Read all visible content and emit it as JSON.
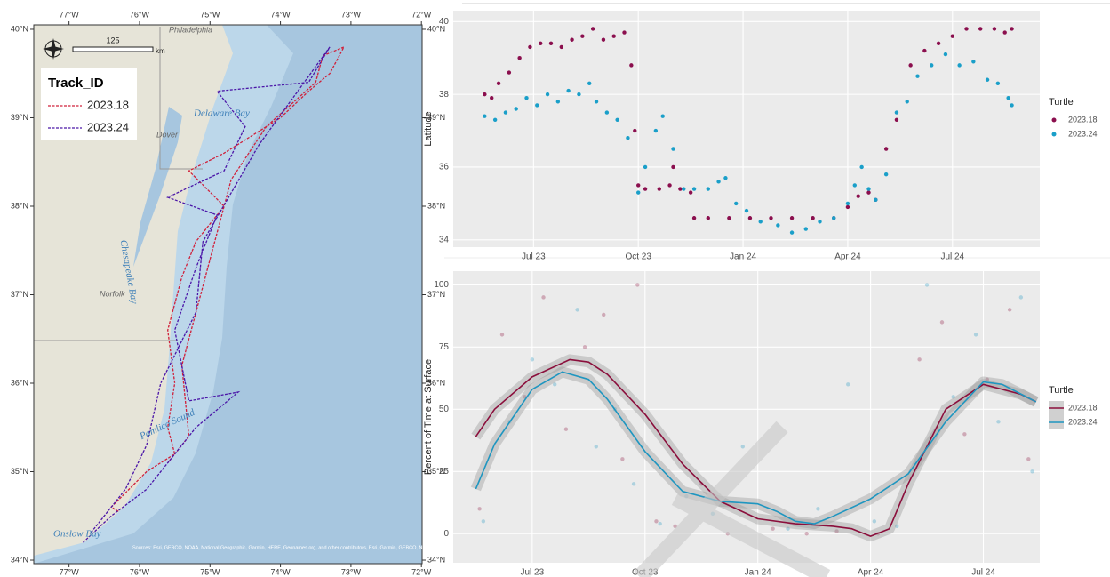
{
  "chart_data": [
    {
      "type": "map",
      "xlim": [
        -77.5,
        -71.99
      ],
      "ylim": [
        33.96,
        40.05
      ],
      "xticks": [
        {
          "value": -77,
          "label": "77°W"
        },
        {
          "value": -76,
          "label": "76°W"
        },
        {
          "value": -75,
          "label": "75°W"
        },
        {
          "value": -74,
          "label": "74°W"
        },
        {
          "value": -73,
          "label": "73°W"
        },
        {
          "value": -72,
          "label": "72°W"
        }
      ],
      "yticks": [
        {
          "value": 34,
          "label": "34°N"
        },
        {
          "value": 35,
          "label": "35°N"
        },
        {
          "value": 36,
          "label": "36°N"
        },
        {
          "value": 37,
          "label": "37°N"
        },
        {
          "value": 38,
          "label": "38°N"
        },
        {
          "value": 39,
          "label": "39°N"
        },
        {
          "value": 40,
          "label": "40°N"
        }
      ],
      "legend_title": "Track_ID",
      "scale_bar": {
        "distance": "125",
        "unit": "km"
      },
      "annotations": [
        "Philadelphia",
        "Dover",
        "Delaware Bay",
        "Chesapeake Bay",
        "Norfolk",
        "Pamlico Sound",
        "Onslow Bay",
        "Sources: Esri, GEBCO, NOAA, National Geographic, Garmin, HERE, Geonames.org, and other contributors, Esri, Garmin, GEBCO, NOAA NGDC, and other contributors"
      ],
      "series": [
        {
          "name": "2023.18",
          "color": "#d0203a",
          "x": [
            -76.3,
            -76.4,
            -75.9,
            -75.5,
            -75.6,
            -75.5,
            -75.6,
            -75.4,
            -75.2,
            -74.8,
            -75.3,
            -74.8,
            -74.0,
            -73.6,
            -73.3,
            -73.1,
            -73.4,
            -73.5,
            -74.2,
            -74.7,
            -75.0,
            -75.4,
            -75.3,
            -75.6
          ],
          "values": [
            34.55,
            34.6,
            35.0,
            35.2,
            35.5,
            36.0,
            36.6,
            37.2,
            37.6,
            38.0,
            38.4,
            38.6,
            39.0,
            39.3,
            39.5,
            39.8,
            39.7,
            39.4,
            38.9,
            38.3,
            37.4,
            36.2,
            35.4,
            35.1
          ]
        },
        {
          "name": "2023.24",
          "color": "#4b16a8",
          "x": [
            -76.8,
            -76.4,
            -75.9,
            -75.6,
            -75.2,
            -74.6,
            -75.3,
            -75.5,
            -75.2,
            -74.9,
            -75.6,
            -74.8,
            -74.5,
            -74.9,
            -73.6,
            -73.3,
            -74.3,
            -75.1,
            -75.2,
            -75.7,
            -75.9,
            -76.2,
            -76.7
          ],
          "values": [
            34.2,
            34.5,
            34.8,
            35.1,
            35.5,
            35.9,
            35.8,
            36.6,
            37.3,
            37.9,
            38.1,
            38.4,
            38.9,
            39.3,
            39.4,
            39.8,
            38.7,
            37.6,
            36.8,
            36.0,
            35.3,
            34.8,
            34.3
          ]
        }
      ]
    },
    {
      "type": "scatter",
      "ylabel": "Latitude",
      "legend_title": "Turtle",
      "xlim": [
        3.7,
        20.5
      ],
      "ylim": [
        33.8,
        40.3
      ],
      "xticks": [
        {
          "value": 6,
          "label": "Jul 23"
        },
        {
          "value": 9,
          "label": "Oct 23"
        },
        {
          "value": 12,
          "label": "Jan 24"
        },
        {
          "value": 15,
          "label": "Apr 24"
        },
        {
          "value": 18,
          "label": "Jul 24"
        }
      ],
      "yticks": [
        34,
        36,
        38,
        40
      ],
      "grid": true,
      "series": [
        {
          "name": "2023.18",
          "color": "#8b0f4e",
          "x": [
            4.6,
            4.8,
            5.0,
            5.3,
            5.6,
            5.9,
            6.2,
            6.5,
            6.8,
            7.1,
            7.4,
            7.7,
            8.0,
            8.3,
            8.6,
            8.8,
            8.9,
            9.0,
            9.2,
            9.6,
            9.9,
            10.0,
            10.2,
            10.5,
            10.6,
            11.0,
            11.6,
            12.2,
            12.8,
            13.4,
            14.0,
            14.6,
            15.0,
            15.3,
            15.6,
            15.8,
            16.1,
            16.4,
            16.8,
            17.2,
            17.6,
            18.0,
            18.4,
            18.8,
            19.2,
            19.5,
            19.7
          ],
          "values": [
            38.0,
            37.9,
            38.3,
            38.6,
            39.0,
            39.3,
            39.4,
            39.4,
            39.3,
            39.5,
            39.6,
            39.8,
            39.5,
            39.6,
            39.7,
            38.8,
            37.0,
            35.5,
            35.4,
            35.4,
            35.5,
            36.0,
            35.4,
            35.3,
            34.6,
            34.6,
            34.6,
            34.6,
            34.6,
            34.6,
            34.6,
            34.6,
            34.9,
            35.2,
            35.3,
            35.1,
            36.5,
            37.3,
            38.8,
            39.2,
            39.4,
            39.6,
            39.8,
            39.8,
            39.8,
            39.7,
            39.8
          ]
        },
        {
          "name": "2023.24",
          "color": "#1a9fc9",
          "x": [
            4.6,
            4.9,
            5.2,
            5.5,
            5.8,
            6.1,
            6.4,
            6.7,
            7.0,
            7.3,
            7.6,
            7.8,
            8.1,
            8.4,
            8.7,
            9.0,
            9.2,
            9.5,
            9.7,
            10.0,
            10.3,
            10.6,
            11.0,
            11.3,
            11.5,
            11.8,
            12.1,
            12.5,
            13.0,
            13.4,
            13.8,
            14.2,
            14.6,
            15.0,
            15.2,
            15.4,
            15.6,
            15.8,
            16.1,
            16.4,
            16.7,
            17.0,
            17.4,
            17.8,
            18.2,
            18.6,
            19.0,
            19.3,
            19.6,
            19.7
          ],
          "values": [
            37.4,
            37.3,
            37.5,
            37.6,
            37.9,
            37.7,
            38.0,
            37.8,
            38.1,
            38.0,
            38.3,
            37.8,
            37.5,
            37.3,
            36.8,
            35.3,
            36.0,
            37.0,
            37.4,
            36.5,
            35.4,
            35.4,
            35.4,
            35.6,
            35.7,
            35.0,
            34.8,
            34.5,
            34.4,
            34.2,
            34.3,
            34.5,
            34.6,
            35.0,
            35.5,
            36.0,
            35.4,
            35.1,
            35.8,
            37.5,
            37.8,
            38.5,
            38.8,
            39.1,
            38.8,
            38.9,
            38.4,
            38.3,
            37.9,
            37.7
          ]
        }
      ]
    },
    {
      "type": "scatter-smooth",
      "ylabel": "Percent of Time at Surface",
      "legend_title": "Turtle",
      "xlim": [
        3.9,
        19.5
      ],
      "ylim": [
        -11.7,
        105.5
      ],
      "xticks": [
        {
          "value": 6,
          "label": "Jul 23"
        },
        {
          "value": 9,
          "label": "Oct 23"
        },
        {
          "value": 12,
          "label": "Jan 24"
        },
        {
          "value": 15,
          "label": "Apr 24"
        },
        {
          "value": 18,
          "label": "Jul 24"
        }
      ],
      "yticks": [
        0,
        25,
        50,
        75,
        100
      ],
      "grid": true,
      "series": [
        {
          "name": "2023.18",
          "color": "#8b0f3c",
          "x": [
            4.5,
            5,
            6,
            7,
            7.5,
            8,
            9,
            10,
            11,
            12,
            13,
            14,
            14.5,
            15,
            15.5,
            16,
            17,
            18,
            18.5,
            19,
            19.4
          ],
          "values": [
            39,
            50,
            63,
            70,
            69,
            64,
            48,
            28,
            13,
            6,
            4,
            3,
            2,
            -1,
            2,
            20,
            50,
            60,
            58,
            56,
            53
          ],
          "points_x": [
            4.6,
            5.2,
            5.8,
            6.3,
            6.9,
            7.4,
            7.9,
            8.4,
            8.8,
            9.3,
            9.8,
            10.5,
            11.2,
            12.4,
            13.3,
            14.1,
            15.2,
            16.3,
            16.9,
            17.5,
            18.1,
            18.7,
            19.2
          ],
          "points_values": [
            10,
            80,
            55,
            95,
            42,
            75,
            88,
            30,
            100,
            5,
            3,
            20,
            0,
            2,
            0,
            1,
            0,
            70,
            85,
            40,
            62,
            90,
            30
          ]
        },
        {
          "name": "2023.24",
          "color": "#1f96c0",
          "x": [
            4.5,
            5,
            6,
            6.8,
            7.5,
            8,
            9,
            10,
            11,
            12,
            12.5,
            13,
            13.5,
            14,
            15,
            16,
            17,
            18,
            18.5,
            19.4
          ],
          "values": [
            18,
            36,
            58,
            65,
            62,
            54,
            33,
            17,
            13,
            12,
            9,
            5,
            4,
            7,
            14,
            24,
            45,
            61,
            60,
            53
          ],
          "points_x": [
            4.7,
            5.4,
            6.0,
            6.6,
            7.2,
            7.7,
            8.2,
            8.7,
            9.4,
            10.1,
            10.8,
            11.6,
            12.8,
            13.6,
            14.4,
            15.1,
            15.7,
            16.5,
            17.2,
            17.8,
            18.4,
            19.0,
            19.3
          ],
          "points_values": [
            5,
            45,
            70,
            60,
            90,
            35,
            50,
            20,
            4,
            15,
            8,
            35,
            2,
            10,
            60,
            5,
            3,
            100,
            55,
            80,
            45,
            95,
            25
          ]
        }
      ]
    }
  ]
}
